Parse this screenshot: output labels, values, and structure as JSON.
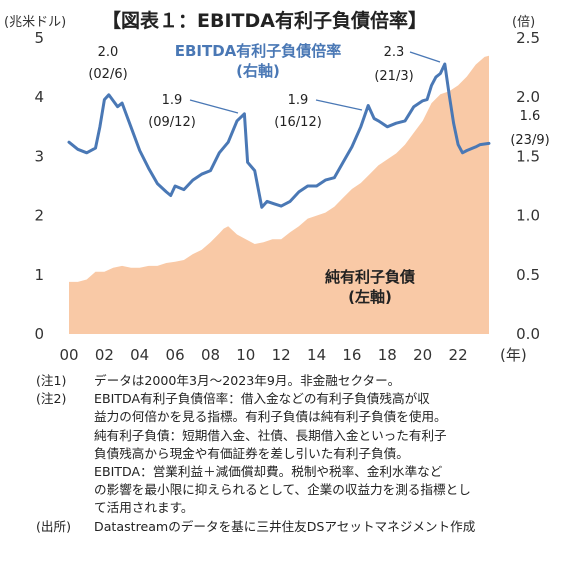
{
  "title": "【図表１：EBITDA有利子負債倍率】",
  "left_unit": "(兆米ドル)",
  "right_unit": "(倍)",
  "x_unit": "(年)",
  "series_labels": {
    "ratio": [
      "EBITDA有利子負債倍率",
      "(右軸)"
    ],
    "debt": [
      "純有利子負債",
      "(左軸)"
    ]
  },
  "annotations": [
    {
      "value": "2.0",
      "date": "(02/6)"
    },
    {
      "value": "1.9",
      "date": "(09/12)"
    },
    {
      "value": "1.9",
      "date": "(16/12)"
    },
    {
      "value": "2.3",
      "date": "(21/3)"
    },
    {
      "value": "1.6",
      "date": "(23/9)"
    }
  ],
  "colors": {
    "ratio_line": "#4a78b5",
    "debt_area": "#f9c9a6",
    "title_blue": "#4a78b5"
  },
  "chart_data": {
    "type": "area+line",
    "x_ticks": [
      "00",
      "02",
      "04",
      "06",
      "08",
      "10",
      "12",
      "14",
      "16",
      "18",
      "20",
      "22"
    ],
    "y_left_ticks": [
      "0",
      "1",
      "2",
      "3",
      "4",
      "5"
    ],
    "y_right_ticks": [
      "0.0",
      "0.5",
      "1.0",
      "1.5",
      "2.0",
      "2.5"
    ],
    "y_left_range": [
      0,
      5
    ],
    "y_right_range": [
      0,
      2.5
    ],
    "x_range": [
      2000.0,
      2023.75
    ],
    "series": [
      {
        "name": "純有利子負債",
        "axis": "left",
        "kind": "area",
        "points": [
          [
            2000.0,
            0.88
          ],
          [
            2000.5,
            0.88
          ],
          [
            2001.0,
            0.92
          ],
          [
            2001.5,
            1.05
          ],
          [
            2002.0,
            1.05
          ],
          [
            2002.5,
            1.12
          ],
          [
            2003.0,
            1.15
          ],
          [
            2003.5,
            1.12
          ],
          [
            2004.0,
            1.12
          ],
          [
            2004.5,
            1.15
          ],
          [
            2005.0,
            1.15
          ],
          [
            2005.5,
            1.2
          ],
          [
            2006.0,
            1.22
          ],
          [
            2006.5,
            1.25
          ],
          [
            2007.0,
            1.35
          ],
          [
            2007.5,
            1.42
          ],
          [
            2008.0,
            1.55
          ],
          [
            2008.5,
            1.7
          ],
          [
            2008.75,
            1.78
          ],
          [
            2009.0,
            1.82
          ],
          [
            2009.5,
            1.68
          ],
          [
            2010.0,
            1.6
          ],
          [
            2010.5,
            1.52
          ],
          [
            2011.0,
            1.55
          ],
          [
            2011.5,
            1.6
          ],
          [
            2012.0,
            1.6
          ],
          [
            2012.5,
            1.72
          ],
          [
            2013.0,
            1.82
          ],
          [
            2013.5,
            1.95
          ],
          [
            2014.0,
            2.0
          ],
          [
            2014.5,
            2.05
          ],
          [
            2015.0,
            2.15
          ],
          [
            2015.5,
            2.3
          ],
          [
            2016.0,
            2.45
          ],
          [
            2016.5,
            2.55
          ],
          [
            2017.0,
            2.7
          ],
          [
            2017.5,
            2.85
          ],
          [
            2018.0,
            2.95
          ],
          [
            2018.5,
            3.05
          ],
          [
            2019.0,
            3.2
          ],
          [
            2019.5,
            3.4
          ],
          [
            2020.0,
            3.6
          ],
          [
            2020.5,
            3.9
          ],
          [
            2021.0,
            4.05
          ],
          [
            2021.5,
            4.1
          ],
          [
            2022.0,
            4.2
          ],
          [
            2022.5,
            4.35
          ],
          [
            2023.0,
            4.55
          ],
          [
            2023.5,
            4.68
          ],
          [
            2023.75,
            4.7
          ]
        ]
      },
      {
        "name": "EBITDA有利子負債倍率",
        "axis": "right",
        "kind": "line",
        "points": [
          [
            2000.0,
            1.62
          ],
          [
            2000.5,
            1.56
          ],
          [
            2001.0,
            1.53
          ],
          [
            2001.5,
            1.57
          ],
          [
            2001.75,
            1.75
          ],
          [
            2002.0,
            1.98
          ],
          [
            2002.25,
            2.02
          ],
          [
            2002.5,
            1.97
          ],
          [
            2002.75,
            1.92
          ],
          [
            2003.0,
            1.95
          ],
          [
            2003.25,
            1.85
          ],
          [
            2003.5,
            1.75
          ],
          [
            2004.0,
            1.55
          ],
          [
            2004.5,
            1.4
          ],
          [
            2005.0,
            1.27
          ],
          [
            2005.5,
            1.2
          ],
          [
            2005.75,
            1.17
          ],
          [
            2006.0,
            1.25
          ],
          [
            2006.5,
            1.22
          ],
          [
            2007.0,
            1.3
          ],
          [
            2007.5,
            1.35
          ],
          [
            2008.0,
            1.38
          ],
          [
            2008.5,
            1.53
          ],
          [
            2009.0,
            1.62
          ],
          [
            2009.5,
            1.8
          ],
          [
            2009.92,
            1.86
          ],
          [
            2010.1,
            1.45
          ],
          [
            2010.5,
            1.38
          ],
          [
            2010.9,
            1.07
          ],
          [
            2011.2,
            1.12
          ],
          [
            2011.6,
            1.1
          ],
          [
            2012.0,
            1.08
          ],
          [
            2012.5,
            1.12
          ],
          [
            2013.0,
            1.2
          ],
          [
            2013.5,
            1.25
          ],
          [
            2014.0,
            1.25
          ],
          [
            2014.5,
            1.3
          ],
          [
            2015.0,
            1.32
          ],
          [
            2015.5,
            1.45
          ],
          [
            2016.0,
            1.58
          ],
          [
            2016.5,
            1.75
          ],
          [
            2016.92,
            1.93
          ],
          [
            2017.25,
            1.82
          ],
          [
            2017.5,
            1.8
          ],
          [
            2018.0,
            1.75
          ],
          [
            2018.5,
            1.78
          ],
          [
            2019.0,
            1.8
          ],
          [
            2019.5,
            1.92
          ],
          [
            2020.0,
            1.97
          ],
          [
            2020.25,
            1.98
          ],
          [
            2020.5,
            2.1
          ],
          [
            2020.75,
            2.17
          ],
          [
            2021.0,
            2.2
          ],
          [
            2021.25,
            2.28
          ],
          [
            2021.5,
            2.02
          ],
          [
            2021.75,
            1.78
          ],
          [
            2022.0,
            1.6
          ],
          [
            2022.25,
            1.53
          ],
          [
            2022.5,
            1.55
          ],
          [
            2023.0,
            1.58
          ],
          [
            2023.25,
            1.6
          ],
          [
            2023.75,
            1.61
          ]
        ]
      }
    ]
  },
  "notes": [
    {
      "head": "(注1)",
      "lines": [
        "データは2000年3月～2023年9月。非金融セクター。"
      ]
    },
    {
      "head": "(注2)",
      "lines": [
        "EBITDA有利子負債倍率：借入金などの有利子負債残高が収",
        "益力の何倍かを見る指標。有利子負債は純有利子負債を使用。",
        "純有利子負債：短期借入金、社債、長期借入金といった有利子",
        "負債残高から現金や有価証券を差し引いた有利子負債。",
        "EBITDA：営業利益＋減価償却費。税制や税率、金利水準など",
        "の影響を最小限に抑えられるとして、企業の収益力を測る指標とし",
        "て活用されます。"
      ]
    },
    {
      "head": "(出所)",
      "lines": [
        "Datastreamのデータを基に三井住友DSアセットマネジメント作成"
      ]
    }
  ]
}
